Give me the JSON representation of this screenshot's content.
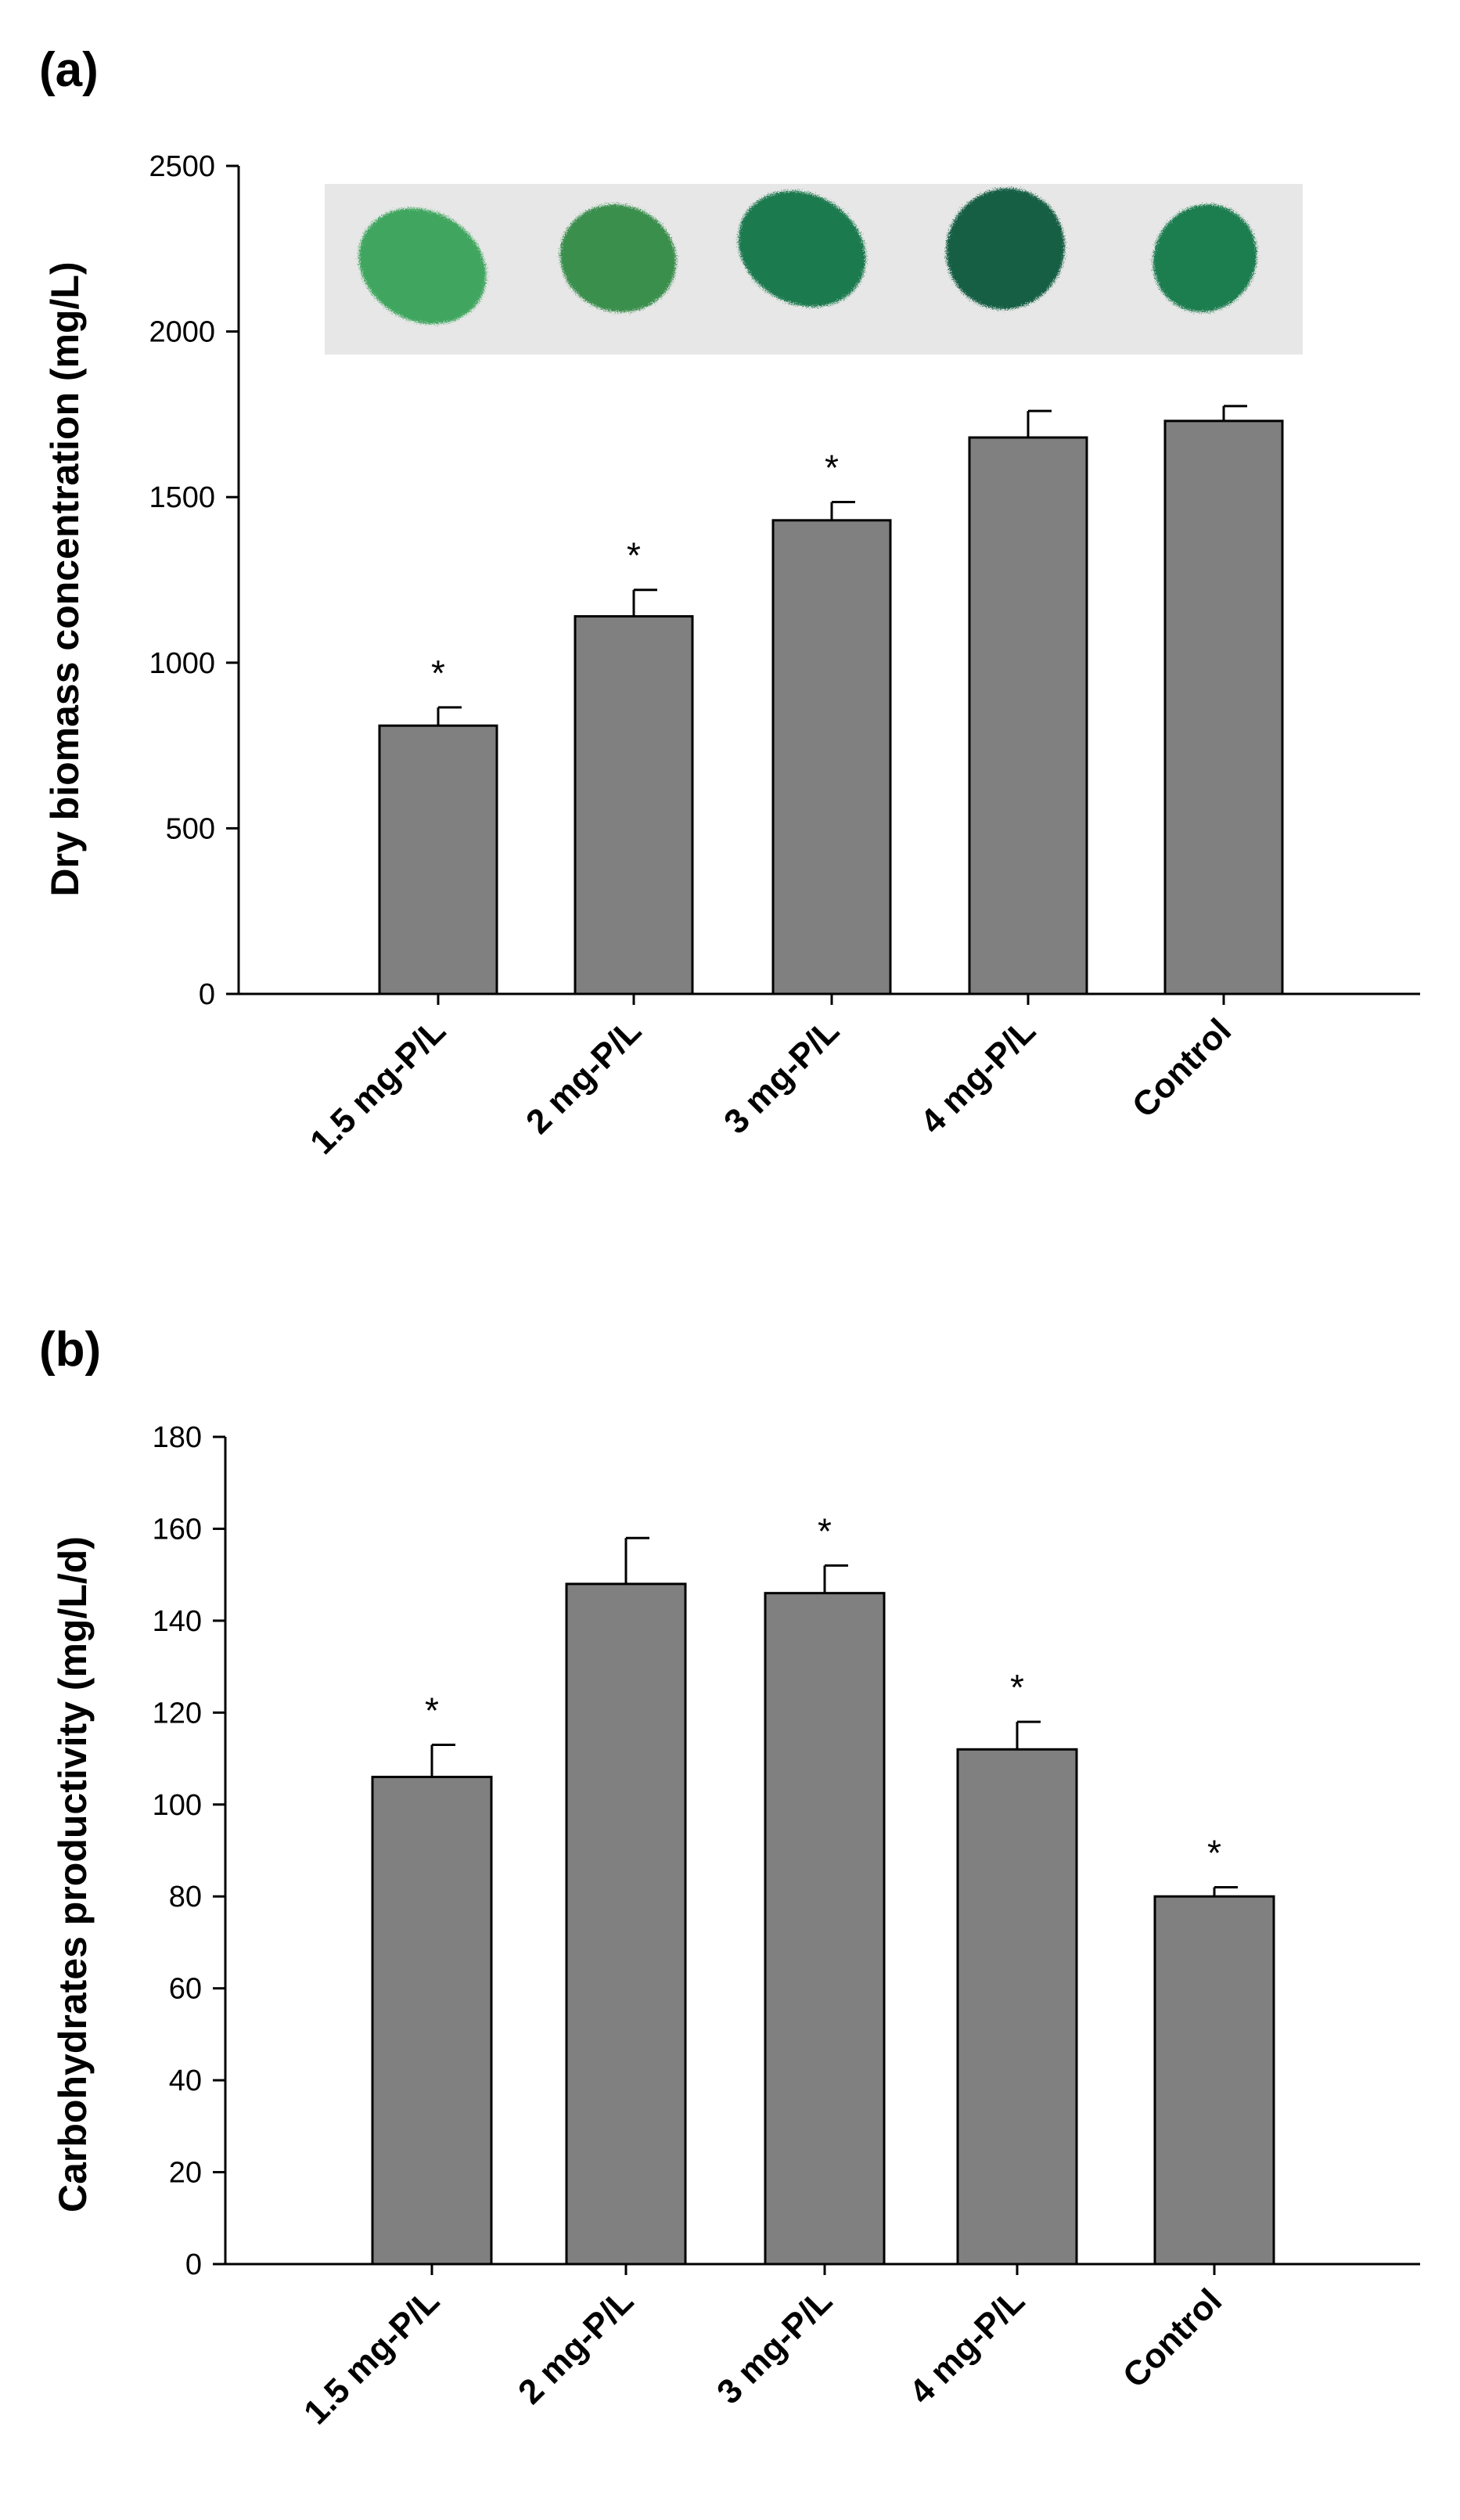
{
  "chart_data": [
    {
      "panel": "(a)",
      "type": "bar",
      "ylabel": "Dry biomass concentration (mg/L)",
      "xlabel": "",
      "ylim": [
        0,
        2500
      ],
      "yticks": [
        0,
        500,
        1000,
        1500,
        2000,
        2500
      ],
      "categories": [
        "1.5 mg-P/L",
        "2 mg-P/L",
        "3 mg-P/L",
        "4 mg-P/L",
        "Control"
      ],
      "values": [
        810,
        1140,
        1430,
        1680,
        1730
      ],
      "errors": [
        55,
        80,
        55,
        80,
        45
      ],
      "significance": [
        "*",
        "*",
        "*",
        "",
        ""
      ],
      "bar_color": "#808080",
      "inset_photo": {
        "sample_colors": [
          "#3fa65f",
          "#3b8f4d",
          "#1f7a4f",
          "#125e45",
          "#1c7d4f"
        ]
      }
    },
    {
      "panel": "(b)",
      "type": "bar",
      "ylabel": "Carbohydrates productivity (mg/L/d)",
      "xlabel": "",
      "ylim": [
        0,
        180
      ],
      "yticks": [
        0,
        20,
        40,
        60,
        80,
        100,
        120,
        140,
        160,
        180
      ],
      "categories": [
        "1.5 mg-P/L",
        "2 mg-P/L",
        "3 mg-P/L",
        "4 mg-P/L",
        "Control"
      ],
      "values": [
        106,
        148,
        146,
        112,
        80
      ],
      "errors": [
        7,
        10,
        6,
        6,
        2
      ],
      "significance": [
        "*",
        "",
        "*",
        "*",
        "*"
      ],
      "bar_color": "#808080"
    }
  ]
}
